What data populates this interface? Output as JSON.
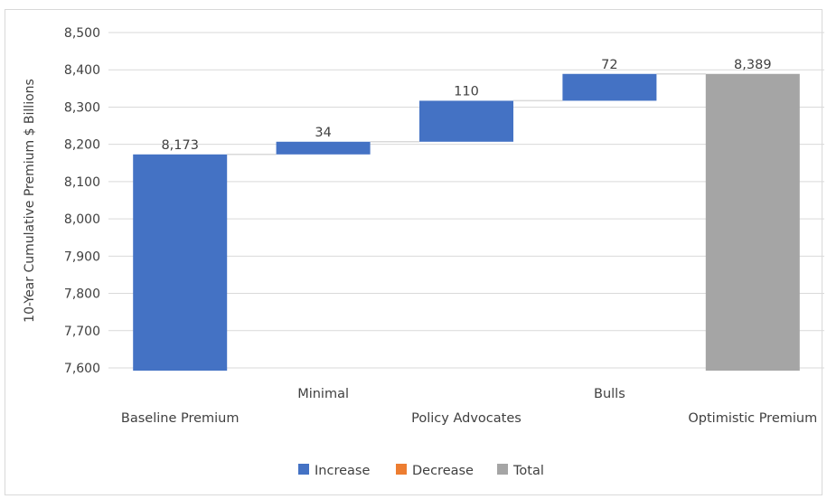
{
  "chart_data": {
    "type": "waterfall",
    "categories": [
      "Baseline Premium",
      "Minimal",
      "Policy Advocates",
      "Bulls",
      "Optimistic Premium"
    ],
    "steps": [
      {
        "category": "Baseline Premium",
        "kind": "Increase",
        "start": 0,
        "end": 8173,
        "label": "8,173"
      },
      {
        "category": "Minimal",
        "kind": "Increase",
        "start": 8173,
        "end": 8207,
        "label": "34"
      },
      {
        "category": "Policy Advocates",
        "kind": "Increase",
        "start": 8207,
        "end": 8317,
        "label": "110"
      },
      {
        "category": "Bulls",
        "kind": "Increase",
        "start": 8317,
        "end": 8389,
        "label": "72"
      },
      {
        "category": "Optimistic Premium",
        "kind": "Total",
        "start": 0,
        "end": 8389,
        "label": "8,389"
      }
    ],
    "xlabel": "",
    "ylabel": "10-Year Cumulative Premium $ Billions",
    "ylim": [
      7600,
      8500
    ],
    "yticks": [
      "7,600",
      "7,700",
      "7,800",
      "7,900",
      "8,000",
      "8,100",
      "8,200",
      "8,300",
      "8,400",
      "8,500"
    ],
    "grid": true,
    "legend": {
      "position": "bottom",
      "entries": [
        {
          "name": "Increase",
          "color": "#4472c4"
        },
        {
          "name": "Decrease",
          "color": "#ed7d31"
        },
        {
          "name": "Total",
          "color": "#a5a5a5"
        }
      ]
    },
    "colors": {
      "Increase": "#4472c4",
      "Decrease": "#ed7d31",
      "Total": "#a5a5a5"
    }
  }
}
